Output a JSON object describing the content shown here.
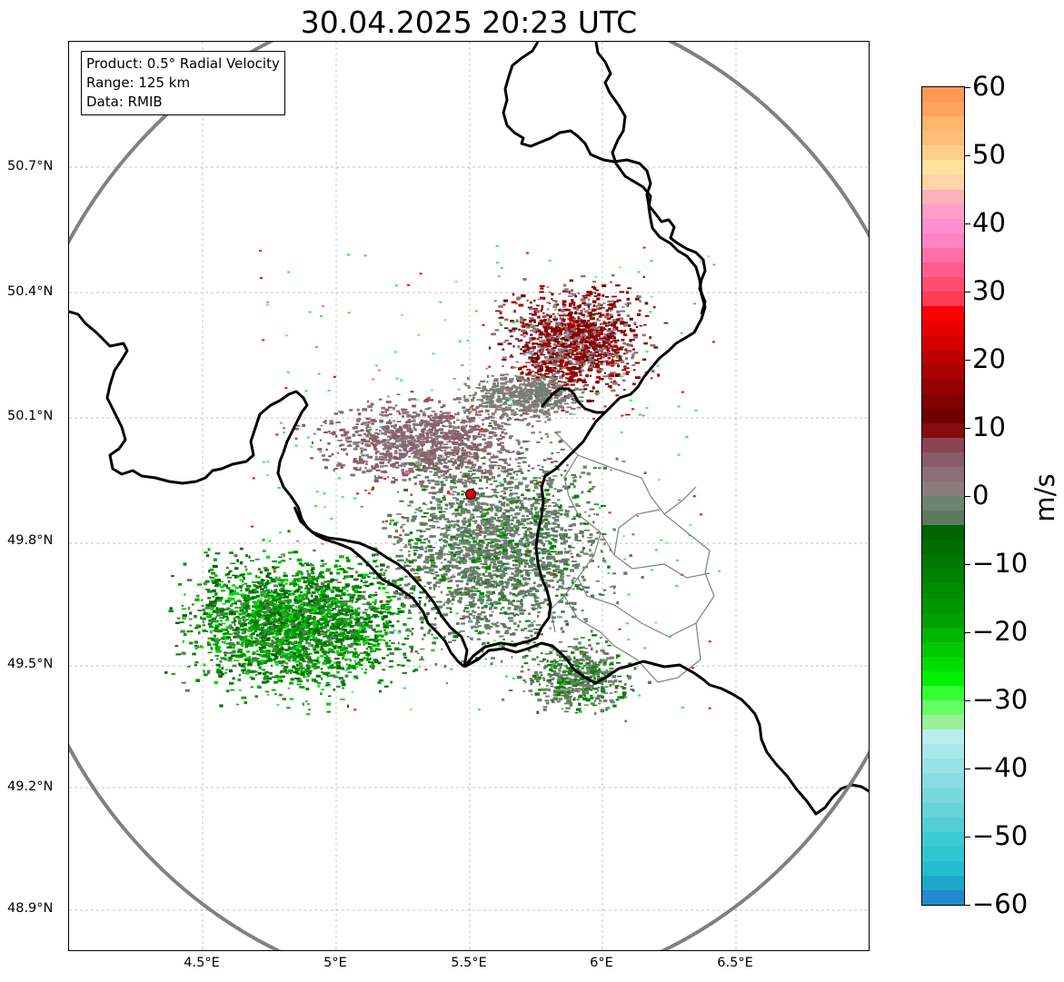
{
  "title": "30.04.2025 20:23 UTC",
  "info_box": {
    "product": "Product: 0.5° Radial Velocity",
    "range": "Range: 125 km",
    "data_source": "Data: RMIB"
  },
  "map": {
    "lat_labels": [
      "50.7°N",
      "50.4°N",
      "50.1°N",
      "49.8°N",
      "49.5°N",
      "49.2°N",
      "48.9°N"
    ],
    "lon_labels": [
      "4.5°E",
      "5°E",
      "5.5°E",
      "6°E",
      "6.5°E"
    ],
    "radar_site": {
      "lat": 49.914,
      "lon": 5.505
    },
    "range_ring_km": 125,
    "colors": {
      "border": "#000000",
      "subdivision": "#808080",
      "range_ring": "#808080",
      "gridline": "#b0b0b0",
      "radar_marker": "#e00000"
    }
  },
  "colorbar": {
    "unit": "m/s",
    "min": -60,
    "max": 60,
    "ticks": [
      "60",
      "50",
      "40",
      "30",
      "20",
      "10",
      "0",
      "−10",
      "−20",
      "−30",
      "−40",
      "−50",
      "−60"
    ],
    "colors_top_to_bottom": [
      "#ff9955",
      "#ffa35e",
      "#ffb56e",
      "#ffbf7a",
      "#ffce8c",
      "#ffe39c",
      "#ffd2a8",
      "#ffb0b8",
      "#ff9ec8",
      "#ff8fd0",
      "#ff83c4",
      "#ff6fa8",
      "#ff5c8c",
      "#ff4c70",
      "#ff3d55",
      "#ff0000",
      "#e80000",
      "#d40000",
      "#bf0000",
      "#aa0000",
      "#960000",
      "#820000",
      "#700000",
      "#850c0c",
      "#8a4555",
      "#8a5c6a",
      "#8c6e78",
      "#8a7c7c",
      "#6e8270",
      "#5e7a5e",
      "#006400",
      "#006e00",
      "#007800",
      "#008200",
      "#008c00",
      "#009600",
      "#00a000",
      "#00b400",
      "#00c800",
      "#00dc00",
      "#00f000",
      "#33ff33",
      "#66ff66",
      "#99f099",
      "#b8eef0",
      "#a8e8ea",
      "#98e2e6",
      "#88dde2",
      "#78d8de",
      "#66d3da",
      "#52cfd6",
      "#3ccbd4",
      "#2ec7d2",
      "#24bdd0",
      "#20a8cc",
      "#1e8ccf"
    ]
  }
}
